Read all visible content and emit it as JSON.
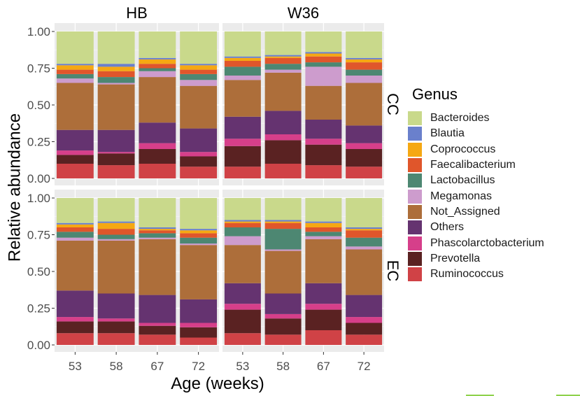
{
  "chart_data": {
    "type": "bar",
    "stacked": true,
    "facet_columns": [
      "HB",
      "W36"
    ],
    "facet_rows": [
      "CC",
      "EC"
    ],
    "categories": [
      "53",
      "58",
      "67",
      "72"
    ],
    "xlabel": "Age (weeks)",
    "ylabel": "Relative abundance",
    "ylim": [
      0,
      1
    ],
    "yticks": [
      "0.00",
      "0.25",
      "0.50",
      "0.75",
      "1.00"
    ],
    "legend_title": "Genus",
    "legend_position": "right",
    "genera": [
      "Bacteroides",
      "Blautia",
      "Coprococcus",
      "Faecalibacterium",
      "Lactobacillus",
      "Megamonas",
      "Not_Assigned",
      "Others",
      "Phascolarctobacterium",
      "Prevotella",
      "Ruminococcus"
    ],
    "colors": {
      "Bacteroides": "#c9d98b",
      "Blautia": "#6a80cc",
      "Coprococcus": "#f5a813",
      "Faecalibacterium": "#e0562b",
      "Lactobacillus": "#4d8772",
      "Megamonas": "#cd9ccd",
      "Not_Assigned": "#ad6e3a",
      "Others": "#653370",
      "Phascolarctobacterium": "#d63f8a",
      "Prevotella": "#5a2222",
      "Ruminococcus": "#d04246"
    },
    "panels": [
      {
        "row": "CC",
        "col": "HB",
        "bars": [
          {
            "category": "53",
            "Ruminococcus": 0.1,
            "Prevotella": 0.06,
            "Phascolarctobacterium": 0.03,
            "Others": 0.14,
            "Not_Assigned": 0.32,
            "Megamonas": 0.03,
            "Lactobacillus": 0.03,
            "Faecalibacterium": 0.03,
            "Coprococcus": 0.03,
            "Blautia": 0.01,
            "Bacteroides": 0.22
          },
          {
            "category": "58",
            "Ruminococcus": 0.09,
            "Prevotella": 0.08,
            "Phascolarctobacterium": 0.01,
            "Others": 0.15,
            "Not_Assigned": 0.31,
            "Megamonas": 0.01,
            "Lactobacillus": 0.04,
            "Faecalibacterium": 0.04,
            "Coprococcus": 0.03,
            "Blautia": 0.02,
            "Bacteroides": 0.22
          },
          {
            "category": "67",
            "Ruminococcus": 0.1,
            "Prevotella": 0.1,
            "Phascolarctobacterium": 0.04,
            "Others": 0.14,
            "Not_Assigned": 0.31,
            "Megamonas": 0.04,
            "Lactobacillus": 0.02,
            "Faecalibacterium": 0.03,
            "Coprococcus": 0.03,
            "Blautia": 0.01,
            "Bacteroides": 0.18
          },
          {
            "category": "72",
            "Ruminococcus": 0.08,
            "Prevotella": 0.07,
            "Phascolarctobacterium": 0.03,
            "Others": 0.16,
            "Not_Assigned": 0.29,
            "Megamonas": 0.04,
            "Lactobacillus": 0.04,
            "Faecalibacterium": 0.03,
            "Coprococcus": 0.03,
            "Blautia": 0.01,
            "Bacteroides": 0.22
          }
        ]
      },
      {
        "row": "CC",
        "col": "W36",
        "bars": [
          {
            "category": "53",
            "Ruminococcus": 0.08,
            "Prevotella": 0.14,
            "Phascolarctobacterium": 0.05,
            "Others": 0.15,
            "Not_Assigned": 0.25,
            "Megamonas": 0.03,
            "Lactobacillus": 0.06,
            "Faecalibacterium": 0.04,
            "Coprococcus": 0.02,
            "Blautia": 0.01,
            "Bacteroides": 0.17
          },
          {
            "category": "58",
            "Ruminococcus": 0.1,
            "Prevotella": 0.16,
            "Phascolarctobacterium": 0.04,
            "Others": 0.16,
            "Not_Assigned": 0.26,
            "Megamonas": 0.02,
            "Lactobacillus": 0.04,
            "Faecalibacterium": 0.04,
            "Coprococcus": 0.01,
            "Blautia": 0.01,
            "Bacteroides": 0.16
          },
          {
            "category": "67",
            "Ruminococcus": 0.09,
            "Prevotella": 0.14,
            "Phascolarctobacterium": 0.04,
            "Others": 0.13,
            "Not_Assigned": 0.23,
            "Megamonas": 0.13,
            "Lactobacillus": 0.03,
            "Faecalibacterium": 0.04,
            "Coprococcus": 0.02,
            "Blautia": 0.01,
            "Bacteroides": 0.14
          },
          {
            "category": "72",
            "Ruminococcus": 0.08,
            "Prevotella": 0.12,
            "Phascolarctobacterium": 0.04,
            "Others": 0.12,
            "Not_Assigned": 0.29,
            "Megamonas": 0.05,
            "Lactobacillus": 0.04,
            "Faecalibacterium": 0.05,
            "Coprococcus": 0.02,
            "Blautia": 0.01,
            "Bacteroides": 0.18
          }
        ]
      },
      {
        "row": "EC",
        "col": "HB",
        "bars": [
          {
            "category": "53",
            "Ruminococcus": 0.08,
            "Prevotella": 0.08,
            "Phascolarctobacterium": 0.03,
            "Others": 0.18,
            "Not_Assigned": 0.34,
            "Megamonas": 0.02,
            "Lactobacillus": 0.04,
            "Faecalibacterium": 0.03,
            "Coprococcus": 0.02,
            "Blautia": 0.01,
            "Bacteroides": 0.17
          },
          {
            "category": "58",
            "Ruminococcus": 0.08,
            "Prevotella": 0.08,
            "Phascolarctobacterium": 0.02,
            "Others": 0.17,
            "Not_Assigned": 0.36,
            "Megamonas": 0.01,
            "Lactobacillus": 0.03,
            "Faecalibacterium": 0.04,
            "Coprococcus": 0.04,
            "Blautia": 0.01,
            "Bacteroides": 0.16
          },
          {
            "category": "67",
            "Ruminococcus": 0.07,
            "Prevotella": 0.06,
            "Phascolarctobacterium": 0.02,
            "Others": 0.19,
            "Not_Assigned": 0.38,
            "Megamonas": 0.01,
            "Lactobacillus": 0.03,
            "Faecalibacterium": 0.02,
            "Coprococcus": 0.01,
            "Blautia": 0.01,
            "Bacteroides": 0.2
          },
          {
            "category": "72",
            "Ruminococcus": 0.05,
            "Prevotella": 0.07,
            "Phascolarctobacterium": 0.03,
            "Others": 0.16,
            "Not_Assigned": 0.37,
            "Megamonas": 0.01,
            "Lactobacillus": 0.04,
            "Faecalibacterium": 0.03,
            "Coprococcus": 0.02,
            "Blautia": 0.01,
            "Bacteroides": 0.21
          }
        ]
      },
      {
        "row": "EC",
        "col": "W36",
        "bars": [
          {
            "category": "53",
            "Ruminococcus": 0.08,
            "Prevotella": 0.16,
            "Phascolarctobacterium": 0.04,
            "Others": 0.14,
            "Not_Assigned": 0.26,
            "Megamonas": 0.06,
            "Lactobacillus": 0.06,
            "Faecalibacterium": 0.03,
            "Coprococcus": 0.01,
            "Blautia": 0.01,
            "Bacteroides": 0.15
          },
          {
            "category": "58",
            "Ruminococcus": 0.07,
            "Prevotella": 0.11,
            "Phascolarctobacterium": 0.03,
            "Others": 0.14,
            "Not_Assigned": 0.29,
            "Megamonas": 0.01,
            "Lactobacillus": 0.14,
            "Faecalibacterium": 0.04,
            "Coprococcus": 0.01,
            "Blautia": 0.01,
            "Bacteroides": 0.15
          },
          {
            "category": "67",
            "Ruminococcus": 0.1,
            "Prevotella": 0.14,
            "Phascolarctobacterium": 0.04,
            "Others": 0.14,
            "Not_Assigned": 0.3,
            "Megamonas": 0.02,
            "Lactobacillus": 0.03,
            "Faecalibacterium": 0.03,
            "Coprococcus": 0.03,
            "Blautia": 0.01,
            "Bacteroides": 0.16
          },
          {
            "category": "72",
            "Ruminococcus": 0.07,
            "Prevotella": 0.08,
            "Phascolarctobacterium": 0.04,
            "Others": 0.15,
            "Not_Assigned": 0.31,
            "Megamonas": 0.02,
            "Lactobacillus": 0.06,
            "Faecalibacterium": 0.05,
            "Coprococcus": 0.01,
            "Blautia": 0.01,
            "Bacteroides": 0.2
          }
        ]
      }
    ]
  }
}
